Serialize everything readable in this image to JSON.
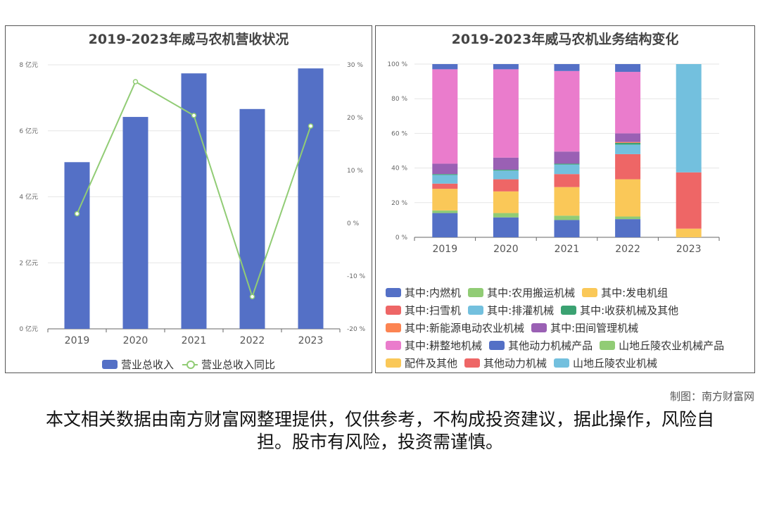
{
  "left_chart": {
    "title": "2019-2023年威马农机营收状况",
    "y_left_ticks": [
      "0 亿元",
      "2 亿元",
      "4 亿元",
      "6 亿元",
      "8 亿元"
    ],
    "y_right_ticks": [
      "-20 %",
      "-10 %",
      "0 %",
      "10 %",
      "20 %",
      "30 %"
    ],
    "legend": [
      {
        "label": "营业总收入",
        "color": "#5470c6"
      },
      {
        "label": "营业总收入同比",
        "color": "#91cc75"
      }
    ]
  },
  "right_chart": {
    "title": "2019-2023年威马农机业务结构变化",
    "y_ticks": [
      "0 %",
      "20 %",
      "40 %",
      "60 %",
      "80 %",
      "100 %"
    ],
    "legend": [
      {
        "label": "其中:内燃机",
        "color": "#5470c6"
      },
      {
        "label": "其中:农用搬运机械",
        "color": "#91cc75"
      },
      {
        "label": "其中:发电机组",
        "color": "#fac858"
      },
      {
        "label": "其中:扫雪机",
        "color": "#ee6666"
      },
      {
        "label": "其中:排灌机械",
        "color": "#73c0de"
      },
      {
        "label": "其中:收获机械及其他",
        "color": "#3ba272"
      },
      {
        "label": "其中:新能源电动农业机械",
        "color": "#fc8452"
      },
      {
        "label": "其中:田间管理机械",
        "color": "#9a60b4"
      },
      {
        "label": "其中:耕整地机械",
        "color": "#ea7ccc"
      },
      {
        "label": "其他动力机械产品",
        "color": "#5470c6"
      },
      {
        "label": "山地丘陵农业机械产品",
        "color": "#91cc75"
      },
      {
        "label": "配件及其他",
        "color": "#fac858"
      },
      {
        "label": "其他动力机械",
        "color": "#ee6666"
      },
      {
        "label": "山地丘陵农业机械",
        "color": "#73c0de"
      }
    ]
  },
  "chart_data": [
    {
      "type": "bar",
      "title": "2019-2023年威马农机营收状况",
      "categories": [
        "2019",
        "2020",
        "2021",
        "2022",
        "2023"
      ],
      "series": [
        {
          "name": "营业总收入",
          "type": "bar",
          "axis": "left",
          "values": [
            5.05,
            6.42,
            7.74,
            6.66,
            7.89
          ],
          "unit": "亿元"
        },
        {
          "name": "营业总收入同比",
          "type": "line",
          "axis": "right",
          "values": [
            1.8,
            26.8,
            20.4,
            -13.9,
            18.4
          ],
          "unit": "%"
        }
      ],
      "ylim_left": [
        0,
        8
      ],
      "ylim_right": [
        -20,
        30
      ],
      "legend_position": "bottom"
    },
    {
      "type": "bar",
      "stacked": true,
      "title": "2019-2023年威马农机业务结构变化",
      "categories": [
        "2019",
        "2020",
        "2021",
        "2022",
        "2023"
      ],
      "series": [
        {
          "name": "其中:内燃机",
          "values": [
            14,
            11.5,
            10,
            10.5,
            0
          ]
        },
        {
          "name": "其中:农用搬运机械",
          "values": [
            1.5,
            2.5,
            2.5,
            1.5,
            0
          ]
        },
        {
          "name": "其中:发电机组",
          "values": [
            12.5,
            12.5,
            16.5,
            21.5,
            0
          ]
        },
        {
          "name": "其中:扫雪机",
          "values": [
            3,
            7,
            7.5,
            14.5,
            0
          ]
        },
        {
          "name": "其中:排灌机械",
          "values": [
            5,
            5,
            5.5,
            5.5,
            0
          ]
        },
        {
          "name": "其中:收获机械及其他",
          "values": [
            0.5,
            0.5,
            0.5,
            1,
            0
          ]
        },
        {
          "name": "其中:新能源电动农业机械",
          "values": [
            0,
            0,
            0,
            0.5,
            0
          ]
        },
        {
          "name": "其中:田间管理机械",
          "values": [
            6,
            7,
            7,
            5,
            0
          ]
        },
        {
          "name": "其中:耕整地机械",
          "values": [
            54.5,
            51,
            46.5,
            35.5,
            0
          ]
        },
        {
          "name": "其他动力机械产品",
          "values": [
            3,
            3,
            4,
            4.5,
            0
          ]
        },
        {
          "name": "山地丘陵农业机械产品",
          "values": [
            0,
            0,
            0,
            0,
            0
          ]
        },
        {
          "name": "配件及其他",
          "values": [
            0,
            0,
            0,
            0,
            5
          ]
        },
        {
          "name": "其他动力机械",
          "values": [
            0,
            0,
            0,
            0,
            32.5
          ]
        },
        {
          "name": "山地丘陵农业机械",
          "values": [
            0,
            0,
            0,
            0,
            62.5
          ]
        }
      ],
      "ylim": [
        0,
        100
      ],
      "legend_position": "bottom"
    }
  ],
  "credit": "制图：南方财富网",
  "disclaimer": "本文相关数据由南方财富网整理提供，仅供参考，不构成投资建议，据此操作，风险自担。股市有风险，投资需谨慎。"
}
